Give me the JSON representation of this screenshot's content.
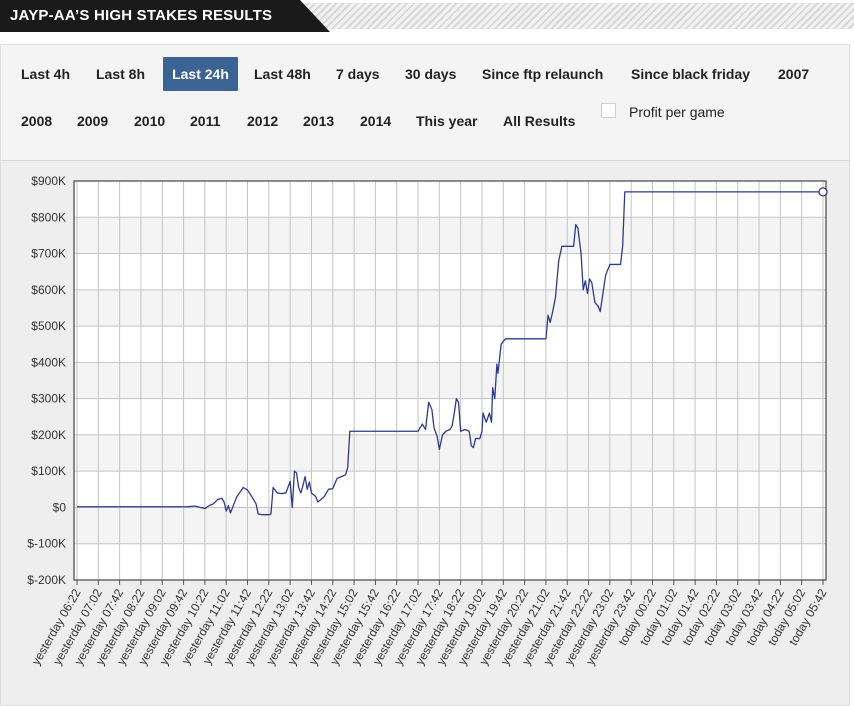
{
  "header": {
    "title": "JAYP-AA’S HIGH STAKES RESULTS"
  },
  "filters": {
    "row1": [
      "Last 4h",
      "Last 8h",
      "Last 24h",
      "Last 48h",
      "7 days",
      "30 days",
      "Since ftp relaunch",
      "Since black friday",
      "2007"
    ],
    "row2": [
      "2008",
      "2009",
      "2010",
      "2011",
      "2012",
      "2013",
      "2014",
      "This year",
      "All Results"
    ],
    "active": "Last 24h",
    "profit_per_game_label": "Profit per game"
  },
  "chart_data": {
    "type": "line",
    "ylim": [
      -200000,
      900000
    ],
    "y_ticks": [
      {
        "value": 900000,
        "label": "$900K"
      },
      {
        "value": 800000,
        "label": "$800K"
      },
      {
        "value": 700000,
        "label": "$700K"
      },
      {
        "value": 600000,
        "label": "$600K"
      },
      {
        "value": 500000,
        "label": "$500K"
      },
      {
        "value": 400000,
        "label": "$400K"
      },
      {
        "value": 300000,
        "label": "$300K"
      },
      {
        "value": 200000,
        "label": "$200K"
      },
      {
        "value": 100000,
        "label": "$100K"
      },
      {
        "value": 0,
        "label": "$0"
      },
      {
        "value": -100000,
        "label": "$-100K"
      },
      {
        "value": -200000,
        "label": "$-200K"
      }
    ],
    "x_ticks": [
      "yesterday 06:22",
      "yesterday 07:02",
      "yesterday 07:42",
      "yesterday 08:22",
      "yesterday 09:02",
      "yesterday 09:42",
      "yesterday 10:22",
      "yesterday 11:02",
      "yesterday 11:42",
      "yesterday 12:22",
      "yesterday 13:02",
      "yesterday 13:42",
      "yesterday 14:22",
      "yesterday 15:02",
      "yesterday 15:42",
      "yesterday 16:22",
      "yesterday 17:02",
      "yesterday 17:42",
      "yesterday 18:22",
      "yesterday 19:02",
      "yesterday 19:42",
      "yesterday 20:22",
      "yesterday 21:02",
      "yesterday 21:42",
      "yesterday 22:22",
      "yesterday 23:02",
      "yesterday 23:42",
      "today 00:22",
      "today 01:02",
      "today 01:42",
      "today 02:22",
      "today 03:02",
      "today 03:42",
      "today 04:22",
      "today 05:02",
      "today 05:42"
    ],
    "series": [
      {
        "color": "#2e3a8c",
        "points": [
          [
            0,
            2000
          ],
          [
            5.2,
            2000
          ],
          [
            5.5,
            4000
          ],
          [
            5.8,
            0
          ],
          [
            6.0,
            -3000
          ],
          [
            6.2,
            5000
          ],
          [
            6.4,
            10000
          ],
          [
            6.6,
            22000
          ],
          [
            6.8,
            25000
          ],
          [
            6.9,
            15000
          ],
          [
            7.0,
            -10000
          ],
          [
            7.1,
            5000
          ],
          [
            7.2,
            -15000
          ],
          [
            7.3,
            0
          ],
          [
            7.5,
            30000
          ],
          [
            7.8,
            55000
          ],
          [
            8.0,
            48000
          ],
          [
            8.2,
            30000
          ],
          [
            8.4,
            10000
          ],
          [
            8.5,
            -18000
          ],
          [
            8.7,
            -20000
          ],
          [
            9.0,
            -20000
          ],
          [
            9.1,
            -18000
          ],
          [
            9.2,
            55000
          ],
          [
            9.4,
            40000
          ],
          [
            9.6,
            38000
          ],
          [
            9.8,
            40000
          ],
          [
            10.0,
            72000
          ],
          [
            10.1,
            0
          ],
          [
            10.2,
            100000
          ],
          [
            10.3,
            95000
          ],
          [
            10.4,
            55000
          ],
          [
            10.5,
            40000
          ],
          [
            10.6,
            60000
          ],
          [
            10.7,
            85000
          ],
          [
            10.8,
            50000
          ],
          [
            10.9,
            70000
          ],
          [
            11.0,
            40000
          ],
          [
            11.2,
            30000
          ],
          [
            11.3,
            15000
          ],
          [
            11.4,
            20000
          ],
          [
            11.6,
            30000
          ],
          [
            11.8,
            50000
          ],
          [
            12.0,
            52000
          ],
          [
            12.2,
            80000
          ],
          [
            12.4,
            85000
          ],
          [
            12.6,
            90000
          ],
          [
            12.7,
            110000
          ],
          [
            12.8,
            210000
          ],
          [
            16.0,
            210000
          ],
          [
            16.2,
            230000
          ],
          [
            16.35,
            215000
          ],
          [
            16.5,
            290000
          ],
          [
            16.65,
            270000
          ],
          [
            16.75,
            220000
          ],
          [
            16.9,
            195000
          ],
          [
            17.0,
            160000
          ],
          [
            17.15,
            200000
          ],
          [
            17.3,
            210000
          ],
          [
            17.5,
            215000
          ],
          [
            17.6,
            225000
          ],
          [
            17.7,
            260000
          ],
          [
            17.8,
            300000
          ],
          [
            17.9,
            290000
          ],
          [
            18.0,
            210000
          ],
          [
            18.2,
            215000
          ],
          [
            18.4,
            210000
          ],
          [
            18.5,
            170000
          ],
          [
            18.6,
            165000
          ],
          [
            18.7,
            190000
          ],
          [
            18.9,
            190000
          ],
          [
            19.0,
            210000
          ],
          [
            19.05,
            260000
          ],
          [
            19.2,
            235000
          ],
          [
            19.35,
            260000
          ],
          [
            19.45,
            235000
          ],
          [
            19.5,
            330000
          ],
          [
            19.6,
            300000
          ],
          [
            19.7,
            395000
          ],
          [
            19.75,
            370000
          ],
          [
            19.9,
            450000
          ],
          [
            20.1,
            465000
          ],
          [
            22.0,
            465000
          ],
          [
            22.1,
            530000
          ],
          [
            22.2,
            510000
          ],
          [
            22.3,
            535000
          ],
          [
            22.45,
            580000
          ],
          [
            22.6,
            680000
          ],
          [
            22.75,
            720000
          ],
          [
            23.3,
            720000
          ],
          [
            23.4,
            780000
          ],
          [
            23.5,
            770000
          ],
          [
            23.65,
            700000
          ],
          [
            23.75,
            600000
          ],
          [
            23.85,
            625000
          ],
          [
            23.95,
            590000
          ],
          [
            24.05,
            630000
          ],
          [
            24.15,
            620000
          ],
          [
            24.3,
            565000
          ],
          [
            24.45,
            555000
          ],
          [
            24.55,
            540000
          ],
          [
            24.7,
            600000
          ],
          [
            24.8,
            640000
          ],
          [
            25.0,
            670000
          ],
          [
            25.5,
            670000
          ],
          [
            25.6,
            720000
          ],
          [
            25.7,
            870000
          ],
          [
            35.0,
            870000
          ]
        ]
      }
    ]
  }
}
